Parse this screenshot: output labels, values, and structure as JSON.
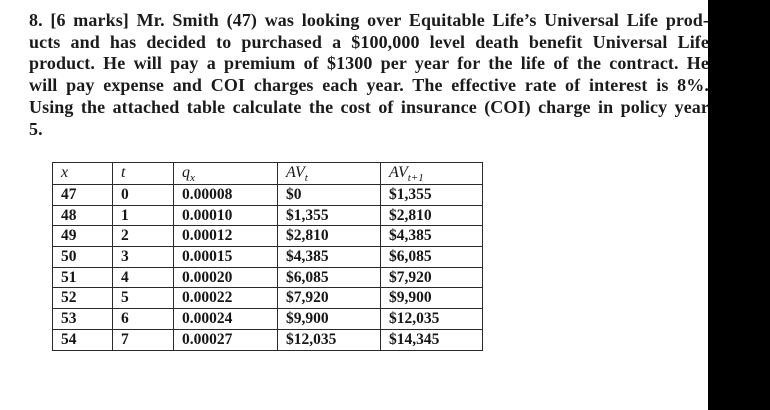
{
  "problem": {
    "lines": [
      "8. [6 marks] Mr. Smith (47) was looking over Equitable Life’s Universal Life prod-",
      "ucts and has decided to purchased a $100,000 level death benefit Universal Life",
      "product. He will pay a premium of $1300 per year for the life of the contract. He",
      "will pay expense and COI charges each year. The effective rate of interest is 8%.",
      "Using the attached table calculate the cost of insurance (COI) charge in policy year",
      "5."
    ]
  },
  "table": {
    "headers": [
      {
        "base": "x",
        "sub": ""
      },
      {
        "base": "t",
        "sub": ""
      },
      {
        "base": "q",
        "sub": "x"
      },
      {
        "base": "AV",
        "sub": "t"
      },
      {
        "base": "AV",
        "sub": "t+1"
      }
    ],
    "rows": [
      [
        "47",
        "0",
        "0.00008",
        "$0",
        "$1,355"
      ],
      [
        "48",
        "1",
        "0.00010",
        "$1,355",
        "$2,810"
      ],
      [
        "49",
        "2",
        "0.00012",
        "$2,810",
        "$4,385"
      ],
      [
        "50",
        "3",
        "0.00015",
        "$4,385",
        "$6,085"
      ],
      [
        "51",
        "4",
        "0.00020",
        "$6,085",
        "$7,920"
      ],
      [
        "52",
        "5",
        "0.00022",
        "$7,920",
        "$9,900"
      ],
      [
        "53",
        "6",
        "0.00024",
        "$9,900",
        "$12,035"
      ],
      [
        "54",
        "7",
        "0.00027",
        "$12,035",
        "$14,345"
      ]
    ]
  },
  "colors": {
    "background": "#ffffff",
    "text": "#1b1b1b",
    "table_border": "#2a2a2a",
    "redaction_bar": "#000000"
  }
}
